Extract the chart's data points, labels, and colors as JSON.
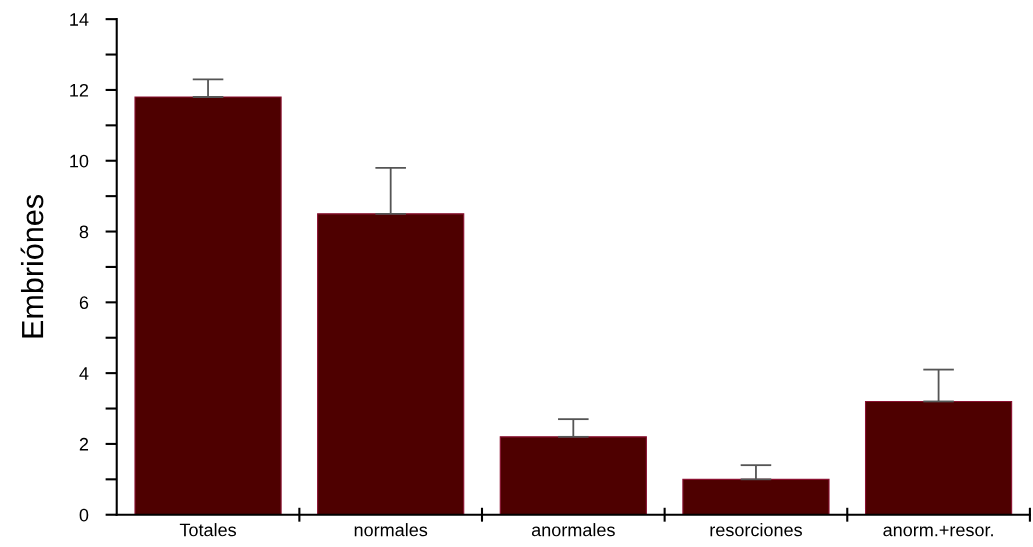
{
  "chart_data": {
    "type": "bar",
    "ylabel": "Embriónes",
    "categories": [
      "Totales",
      "normales",
      "anormales",
      "resorciones",
      "anorm.+resor."
    ],
    "values": [
      11.8,
      8.5,
      2.2,
      1.0,
      3.2
    ],
    "errors": [
      [
        11.8,
        12.3
      ],
      [
        8.5,
        9.8
      ],
      [
        2.2,
        2.7
      ],
      [
        1.0,
        1.4
      ],
      [
        3.2,
        4.1
      ]
    ],
    "color": "#4e0000",
    "ylim": [
      0,
      14
    ],
    "yticks": [
      0,
      {
        "value": 1,
        "label": null
      },
      2,
      {
        "value": 3,
        "label": null
      },
      4,
      {
        "value": 5,
        "label": null
      },
      6,
      {
        "value": 7,
        "label": null
      },
      8,
      {
        "value": 9,
        "label": null
      },
      10,
      {
        "value": 11,
        "label": null
      },
      12,
      {
        "value": 13,
        "label": null
      },
      14
    ],
    "grid": false,
    "legend": false
  }
}
